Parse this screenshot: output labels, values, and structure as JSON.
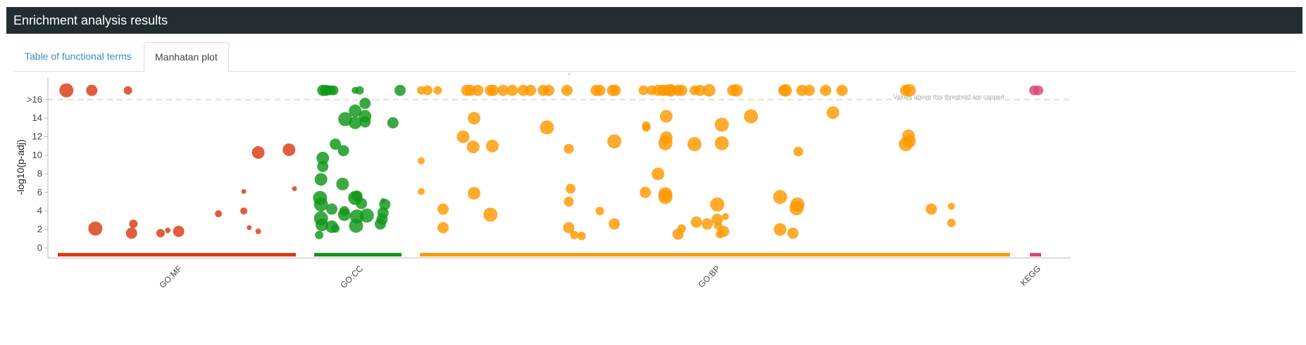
{
  "header": {
    "title": "Enrichment analysis results"
  },
  "tabs": [
    {
      "label": "Table of functional terms",
      "active": false
    },
    {
      "label": "Manhatan plot",
      "active": true
    }
  ],
  "chart_data": {
    "type": "scatter",
    "top_label": "0",
    "ylabel": "-log10(p-adj)",
    "ylim": [
      -1,
      18.5
    ],
    "y_ticks": [
      {
        "value": 0,
        "label": "0"
      },
      {
        "value": 2,
        "label": "2"
      },
      {
        "value": 4,
        "label": "4"
      },
      {
        "value": 6,
        "label": "6"
      },
      {
        "value": 8,
        "label": "8"
      },
      {
        "value": 10,
        "label": "10"
      },
      {
        "value": 12,
        "label": "12"
      },
      {
        "value": 14,
        "label": "14"
      },
      {
        "value": 16,
        "label": ">16"
      }
    ],
    "threshold": {
      "value": 16,
      "note": "Values above this threshold are capped"
    },
    "sources": [
      {
        "name": "GO:MF",
        "color": "#dc3912",
        "range": [
          0,
          1300
        ],
        "points": [
          {
            "x": 40,
            "y": 17,
            "r": 10
          },
          {
            "x": 180,
            "y": 17,
            "r": 8
          },
          {
            "x": 380,
            "y": 17,
            "r": 6
          },
          {
            "x": 200,
            "y": 2.1,
            "r": 10
          },
          {
            "x": 400,
            "y": 1.6,
            "r": 8
          },
          {
            "x": 410,
            "y": 2.6,
            "r": 6
          },
          {
            "x": 560,
            "y": 1.6,
            "r": 6
          },
          {
            "x": 600,
            "y": 1.9,
            "r": 4
          },
          {
            "x": 660,
            "y": 1.8,
            "r": 8
          },
          {
            "x": 880,
            "y": 3.7,
            "r": 5
          },
          {
            "x": 1020,
            "y": 4.0,
            "r": 5
          },
          {
            "x": 1020,
            "y": 6.1,
            "r": 3.5
          },
          {
            "x": 1050,
            "y": 2.2,
            "r": 3.5
          },
          {
            "x": 1100,
            "y": 1.8,
            "r": 4
          },
          {
            "x": 1100,
            "y": 10.3,
            "r": 9
          },
          {
            "x": 1270,
            "y": 10.6,
            "r": 9
          },
          {
            "x": 1300,
            "y": 6.4,
            "r": 3.5
          }
        ]
      },
      {
        "name": "GO:CC",
        "color": "#109618",
        "range": [
          0,
          470
        ],
        "points": [
          {
            "x": 40,
            "y": 17,
            "r": 8
          },
          {
            "x": 55,
            "y": 17,
            "r": 8
          },
          {
            "x": 70,
            "y": 17,
            "r": 7
          },
          {
            "x": 85,
            "y": 17,
            "r": 7
          },
          {
            "x": 100,
            "y": 17,
            "r": 7
          },
          {
            "x": 220,
            "y": 17,
            "r": 5
          },
          {
            "x": 245,
            "y": 17,
            "r": 6
          },
          {
            "x": 470,
            "y": 17,
            "r": 8
          },
          {
            "x": 40,
            "y": 9.7,
            "r": 9
          },
          {
            "x": 40,
            "y": 8.8,
            "r": 8
          },
          {
            "x": 30,
            "y": 7.4,
            "r": 9
          },
          {
            "x": 25,
            "y": 5.4,
            "r": 10
          },
          {
            "x": 30,
            "y": 4.7,
            "r": 10
          },
          {
            "x": 30,
            "y": 3.2,
            "r": 10
          },
          {
            "x": 35,
            "y": 2.5,
            "r": 9
          },
          {
            "x": 20,
            "y": 1.4,
            "r": 6
          },
          {
            "x": 90,
            "y": 4.2,
            "r": 8
          },
          {
            "x": 90,
            "y": 2.3,
            "r": 9
          },
          {
            "x": 110,
            "y": 2.1,
            "r": 6
          },
          {
            "x": 110,
            "y": 11.2,
            "r": 8
          },
          {
            "x": 155,
            "y": 10.5,
            "r": 8
          },
          {
            "x": 150,
            "y": 6.9,
            "r": 9
          },
          {
            "x": 160,
            "y": 3.6,
            "r": 9
          },
          {
            "x": 160,
            "y": 4.0,
            "r": 7
          },
          {
            "x": 165,
            "y": 13.9,
            "r": 10
          },
          {
            "x": 220,
            "y": 14.8,
            "r": 9
          },
          {
            "x": 220,
            "y": 13.5,
            "r": 9
          },
          {
            "x": 220,
            "y": 5.4,
            "r": 10
          },
          {
            "x": 230,
            "y": 5.6,
            "r": 8
          },
          {
            "x": 230,
            "y": 3.4,
            "r": 10
          },
          {
            "x": 225,
            "y": 2.4,
            "r": 10
          },
          {
            "x": 255,
            "y": 4.8,
            "r": 8
          },
          {
            "x": 275,
            "y": 15.6,
            "r": 8
          },
          {
            "x": 275,
            "y": 14.2,
            "r": 9
          },
          {
            "x": 275,
            "y": 13.6,
            "r": 8
          },
          {
            "x": 285,
            "y": 3.5,
            "r": 10
          },
          {
            "x": 375,
            "y": 5.1,
            "r": 3.5
          },
          {
            "x": 385,
            "y": 4.7,
            "r": 8
          },
          {
            "x": 375,
            "y": 3.8,
            "r": 8
          },
          {
            "x": 370,
            "y": 3.1,
            "r": 8
          },
          {
            "x": 360,
            "y": 2.6,
            "r": 8
          },
          {
            "x": 430,
            "y": 13.5,
            "r": 8
          }
        ]
      },
      {
        "name": "GO:BP",
        "color": "#ff9900",
        "range": [
          0,
          3225
        ],
        "points": [
          {
            "x": 0,
            "y": 17,
            "r": 6
          },
          {
            "x": 35,
            "y": 17,
            "r": 7
          },
          {
            "x": 90,
            "y": 17,
            "r": 6
          },
          {
            "x": 250,
            "y": 17,
            "r": 8
          },
          {
            "x": 270,
            "y": 17,
            "r": 8
          },
          {
            "x": 310,
            "y": 17,
            "r": 8
          },
          {
            "x": 380,
            "y": 17,
            "r": 8
          },
          {
            "x": 395,
            "y": 17,
            "r": 8
          },
          {
            "x": 450,
            "y": 17,
            "r": 8
          },
          {
            "x": 500,
            "y": 17,
            "r": 8
          },
          {
            "x": 560,
            "y": 17,
            "r": 8
          },
          {
            "x": 600,
            "y": 17,
            "r": 8
          },
          {
            "x": 670,
            "y": 17,
            "r": 8
          },
          {
            "x": 700,
            "y": 17,
            "r": 8
          },
          {
            "x": 800,
            "y": 17,
            "r": 8
          },
          {
            "x": 960,
            "y": 17,
            "r": 8
          },
          {
            "x": 980,
            "y": 17,
            "r": 8
          },
          {
            "x": 1050,
            "y": 17,
            "r": 8
          },
          {
            "x": 1065,
            "y": 17,
            "r": 8
          },
          {
            "x": 1220,
            "y": 17,
            "r": 7
          },
          {
            "x": 1265,
            "y": 17,
            "r": 7
          },
          {
            "x": 1300,
            "y": 17,
            "r": 8
          },
          {
            "x": 1325,
            "y": 17,
            "r": 8
          },
          {
            "x": 1340,
            "y": 17,
            "r": 8
          },
          {
            "x": 1360,
            "y": 17,
            "r": 8
          },
          {
            "x": 1370,
            "y": 17,
            "r": 9
          },
          {
            "x": 1410,
            "y": 17,
            "r": 8
          },
          {
            "x": 1430,
            "y": 17,
            "r": 8
          },
          {
            "x": 1500,
            "y": 17,
            "r": 7
          },
          {
            "x": 1530,
            "y": 17,
            "r": 8
          },
          {
            "x": 1580,
            "y": 17,
            "r": 9
          },
          {
            "x": 1710,
            "y": 17,
            "r": 8
          },
          {
            "x": 1730,
            "y": 17,
            "r": 9
          },
          {
            "x": 1990,
            "y": 17,
            "r": 8
          },
          {
            "x": 2000,
            "y": 17,
            "r": 9
          },
          {
            "x": 2090,
            "y": 17,
            "r": 8
          },
          {
            "x": 2130,
            "y": 17,
            "r": 8
          },
          {
            "x": 2220,
            "y": 17,
            "r": 8
          },
          {
            "x": 2310,
            "y": 17,
            "r": 8
          },
          {
            "x": 2660,
            "y": 17,
            "r": 8
          },
          {
            "x": 2680,
            "y": 17,
            "r": 9
          },
          {
            "x": 0,
            "y": 9.4,
            "r": 5
          },
          {
            "x": 0,
            "y": 6.1,
            "r": 5
          },
          {
            "x": 120,
            "y": 4.2,
            "r": 8
          },
          {
            "x": 120,
            "y": 2.2,
            "r": 8
          },
          {
            "x": 230,
            "y": 12.0,
            "r": 9
          },
          {
            "x": 290,
            "y": 14.0,
            "r": 9
          },
          {
            "x": 285,
            "y": 10.9,
            "r": 9
          },
          {
            "x": 290,
            "y": 5.9,
            "r": 9
          },
          {
            "x": 380,
            "y": 3.6,
            "r": 10
          },
          {
            "x": 390,
            "y": 11.0,
            "r": 9
          },
          {
            "x": 690,
            "y": 13.0,
            "r": 10
          },
          {
            "x": 810,
            "y": 10.7,
            "r": 7
          },
          {
            "x": 820,
            "y": 6.4,
            "r": 7
          },
          {
            "x": 810,
            "y": 5.0,
            "r": 7
          },
          {
            "x": 810,
            "y": 2.2,
            "r": 8
          },
          {
            "x": 840,
            "y": 1.4,
            "r": 6
          },
          {
            "x": 880,
            "y": 1.3,
            "r": 6
          },
          {
            "x": 980,
            "y": 4.0,
            "r": 6
          },
          {
            "x": 1060,
            "y": 11.5,
            "r": 10
          },
          {
            "x": 1060,
            "y": 2.6,
            "r": 8
          },
          {
            "x": 1230,
            "y": 6.0,
            "r": 8
          },
          {
            "x": 1235,
            "y": 13.2,
            "r": 6
          },
          {
            "x": 1235,
            "y": 13.0,
            "r": 6
          },
          {
            "x": 1300,
            "y": 8.0,
            "r": 9
          },
          {
            "x": 1340,
            "y": 5.8,
            "r": 10
          },
          {
            "x": 1340,
            "y": 5.5,
            "r": 10
          },
          {
            "x": 1345,
            "y": 11.9,
            "r": 9
          },
          {
            "x": 1340,
            "y": 11.3,
            "r": 10
          },
          {
            "x": 1345,
            "y": 14.2,
            "r": 9
          },
          {
            "x": 1410,
            "y": 1.5,
            "r": 8
          },
          {
            "x": 1430,
            "y": 2.1,
            "r": 6
          },
          {
            "x": 1500,
            "y": 11.2,
            "r": 10
          },
          {
            "x": 1510,
            "y": 2.8,
            "r": 8
          },
          {
            "x": 1570,
            "y": 2.6,
            "r": 8
          },
          {
            "x": 1625,
            "y": 4.7,
            "r": 10
          },
          {
            "x": 1625,
            "y": 3.1,
            "r": 8
          },
          {
            "x": 1630,
            "y": 2.4,
            "r": 6
          },
          {
            "x": 1640,
            "y": 1.5,
            "r": 6
          },
          {
            "x": 1660,
            "y": 1.8,
            "r": 8
          },
          {
            "x": 1670,
            "y": 3.4,
            "r": 5
          },
          {
            "x": 1650,
            "y": 13.3,
            "r": 10
          },
          {
            "x": 1650,
            "y": 11.3,
            "r": 10
          },
          {
            "x": 1810,
            "y": 14.2,
            "r": 10
          },
          {
            "x": 1970,
            "y": 5.5,
            "r": 10
          },
          {
            "x": 1970,
            "y": 2.0,
            "r": 9
          },
          {
            "x": 2040,
            "y": 1.6,
            "r": 8
          },
          {
            "x": 2060,
            "y": 4.3,
            "r": 10
          },
          {
            "x": 2065,
            "y": 4.7,
            "r": 10
          },
          {
            "x": 2070,
            "y": 10.4,
            "r": 7
          },
          {
            "x": 2260,
            "y": 14.6,
            "r": 9
          },
          {
            "x": 2660,
            "y": 11.2,
            "r": 10
          },
          {
            "x": 2680,
            "y": 11.5,
            "r": 9
          },
          {
            "x": 2675,
            "y": 12.1,
            "r": 9
          },
          {
            "x": 2800,
            "y": 4.2,
            "r": 8
          },
          {
            "x": 2910,
            "y": 4.5,
            "r": 5
          },
          {
            "x": 2910,
            "y": 2.7,
            "r": 6
          }
        ]
      },
      {
        "name": "KEGG",
        "color": "#dd4477",
        "range": [
          0,
          30
        ],
        "points": [
          {
            "x": 10,
            "y": 17,
            "r": 7
          },
          {
            "x": 25,
            "y": 17,
            "r": 7
          }
        ]
      }
    ]
  }
}
